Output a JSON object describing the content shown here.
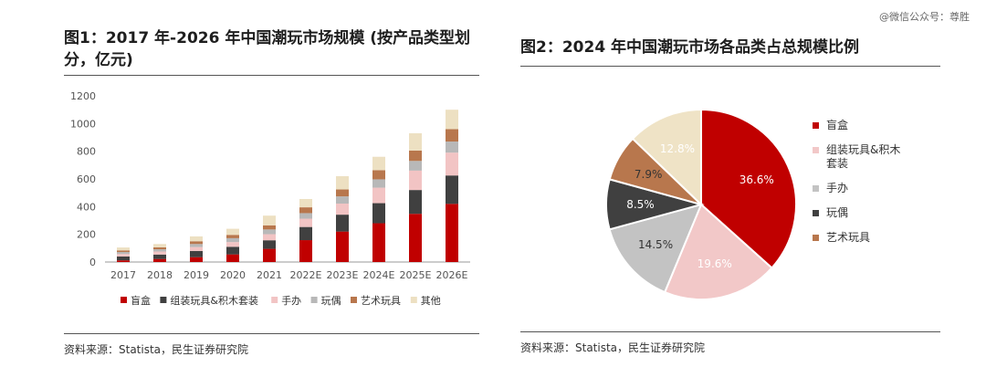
{
  "watermark": "@微信公众号：尊胜",
  "chart_data": [
    {
      "type": "bar",
      "stacked": true,
      "title": "图1：2017 年-2026 年中国潮玩市场规模 (按产品类型划分，亿元)",
      "categories": [
        "2017",
        "2018",
        "2019",
        "2020",
        "2021",
        "2022E",
        "2023E",
        "2024E",
        "2025E",
        "2026E"
      ],
      "ylim": [
        0,
        1200
      ],
      "yticks": [
        0,
        200,
        400,
        600,
        800,
        1000,
        1200
      ],
      "legend_position": "bottom",
      "series": [
        {
          "name": "盲盒",
          "color": "#c00000",
          "values": [
            12,
            22,
            35,
            55,
            95,
            158,
            220,
            280,
            348,
            420
          ]
        },
        {
          "name": "组装玩具&积木套装",
          "color": "#404040",
          "values": [
            28,
            32,
            45,
            55,
            62,
            95,
            122,
            145,
            172,
            205
          ]
        },
        {
          "name": "手办",
          "color": "#f2c4c4",
          "values": [
            18,
            22,
            28,
            34,
            44,
            60,
            80,
            112,
            140,
            165
          ]
        },
        {
          "name": "玩偶",
          "color": "#b8b8b8",
          "values": [
            14,
            16,
            22,
            28,
            34,
            40,
            52,
            60,
            70,
            80
          ]
        },
        {
          "name": "艺术玩具",
          "color": "#b8774d",
          "values": [
            12,
            14,
            20,
            24,
            30,
            42,
            50,
            66,
            75,
            90
          ]
        },
        {
          "name": "其他",
          "color": "#ede0c2",
          "values": [
            21,
            24,
            35,
            44,
            70,
            60,
            96,
            97,
            125,
            140
          ]
        }
      ],
      "source": "资料来源：Statista，民生证券研究院"
    },
    {
      "type": "pie",
      "title": "图2：2024 年中国潮玩市场各品类占总规模比例",
      "legend_position": "right",
      "slices": [
        {
          "name": "盲盒",
          "value": 36.6,
          "label": "36.6%",
          "color": "#c00000",
          "label_color": "#ffffff"
        },
        {
          "name": "组装玩具&积木套装",
          "value": 19.6,
          "label": "19.6%",
          "color": "#f2c8c8",
          "label_color": "#ffffff"
        },
        {
          "name": "手办",
          "value": 14.5,
          "label": "14.5%",
          "color": "#c3c3c3",
          "label_color": "#333333"
        },
        {
          "name": "玩偶",
          "value": 8.5,
          "label": "8.5%",
          "color": "#404040",
          "label_color": "#ffffff"
        },
        {
          "name": "艺术玩具",
          "value": 7.9,
          "label": "7.9%",
          "color": "#b8774d",
          "label_color": "#333333"
        },
        {
          "name": "其他",
          "value": 12.8,
          "label": "12.8%",
          "color": "#efe3c6",
          "label_color": "#ffffff"
        }
      ],
      "legend_items": [
        "盲盒",
        "组装玩具&积木套装",
        "手办",
        "玩偶",
        "艺术玩具"
      ],
      "source": "资料来源：Statista，民生证券研究院"
    }
  ]
}
